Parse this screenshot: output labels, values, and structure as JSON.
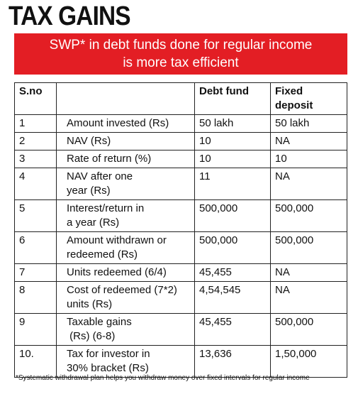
{
  "header": {
    "title": "TAX GAINS",
    "banner": [
      "SWP* in debt funds done for regular income",
      "is more tax efficient"
    ]
  },
  "table": {
    "columns": [
      "S.no",
      "Debt fund",
      "Fixed deposit"
    ],
    "rows": [
      {
        "sno": "1",
        "label": [
          "Amount invested (Rs)"
        ],
        "debt": "50 lakh",
        "fd": "50 lakh"
      },
      {
        "sno": "2",
        "label": [
          "NAV (Rs)"
        ],
        "debt": "10",
        "fd": "NA"
      },
      {
        "sno": "3",
        "label": [
          "Rate of return (%)"
        ],
        "debt": "10",
        "fd": "10"
      },
      {
        "sno": "4",
        "label": [
          "NAV after one",
          "year (Rs)"
        ],
        "debt": "11",
        "fd": "NA"
      },
      {
        "sno": "5",
        "label": [
          "Interest/return in",
          "a year (Rs)"
        ],
        "debt": "500,000",
        "fd": "500,000"
      },
      {
        "sno": "6",
        "label": [
          "Amount withdrawn or",
          "redeemed (Rs)"
        ],
        "debt": "500,000",
        "fd": "500,000"
      },
      {
        "sno": "7",
        "label": [
          "Units redeemed (6/4)"
        ],
        "debt": "45,455",
        "fd": "NA"
      },
      {
        "sno": "8",
        "label": [
          "Cost of redeemed (7*2)",
          "units (Rs)"
        ],
        "debt": "4,54,545",
        "fd": "NA"
      },
      {
        "sno": "9",
        "label": [
          "Taxable gains",
          " (Rs) (6-8)"
        ],
        "debt": "45,455",
        "fd": "500,000"
      },
      {
        "sno": "10.",
        "label": [
          "Tax for investor in",
          "30% bracket (Rs)"
        ],
        "debt": "13,636",
        "fd": "1,50,000"
      }
    ]
  },
  "footnote": "*Systematic withdrawal plan helps you withdraw money over fixed intervals for regular income"
}
